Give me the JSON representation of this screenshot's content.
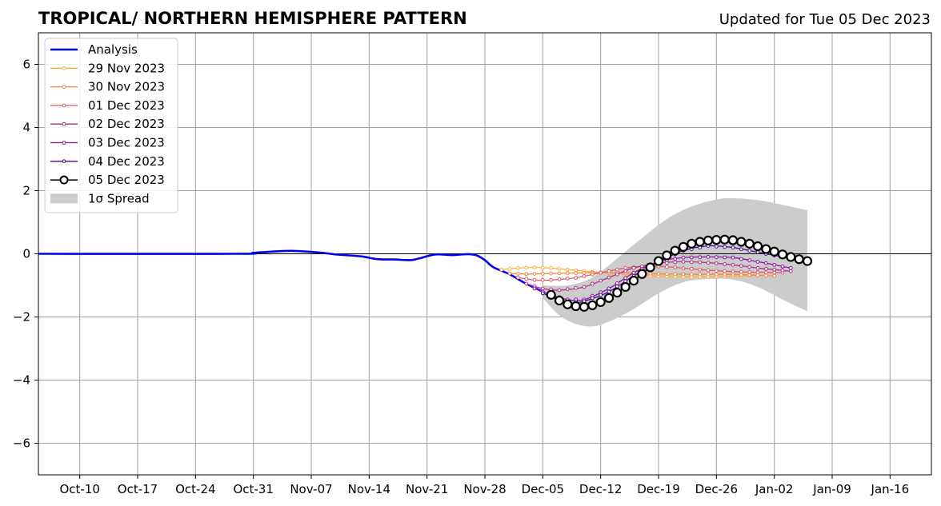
{
  "chart_data": {
    "type": "line",
    "title": "TROPICAL/ NORTHERN HEMISPHERE PATTERN",
    "subtitle": "Updated for Tue 05 Dec 2023",
    "xlabel": "",
    "ylabel": "",
    "xlim": [
      "2023-10-05",
      "2024-01-21"
    ],
    "ylim": [
      -7,
      7
    ],
    "x_ticks": [
      {
        "date": "2023-10-10",
        "label": "Oct-10"
      },
      {
        "date": "2023-10-17",
        "label": "Oct-17"
      },
      {
        "date": "2023-10-24",
        "label": "Oct-24"
      },
      {
        "date": "2023-10-31",
        "label": "Oct-31"
      },
      {
        "date": "2023-11-07",
        "label": "Nov-07"
      },
      {
        "date": "2023-11-14",
        "label": "Nov-14"
      },
      {
        "date": "2023-11-21",
        "label": "Nov-21"
      },
      {
        "date": "2023-11-28",
        "label": "Nov-28"
      },
      {
        "date": "2023-12-05",
        "label": "Dec-05"
      },
      {
        "date": "2023-12-12",
        "label": "Dec-12"
      },
      {
        "date": "2023-12-19",
        "label": "Dec-19"
      },
      {
        "date": "2023-12-26",
        "label": "Dec-26"
      },
      {
        "date": "2024-01-02",
        "label": "Jan-02"
      },
      {
        "date": "2024-01-09",
        "label": "Jan-09"
      },
      {
        "date": "2024-01-16",
        "label": "Jan-16"
      }
    ],
    "y_ticks": [
      {
        "value": 6,
        "label": "6"
      },
      {
        "value": 4,
        "label": "4"
      },
      {
        "value": 2,
        "label": "2"
      },
      {
        "value": 0,
        "label": "0"
      },
      {
        "value": -2,
        "label": "−2"
      },
      {
        "value": -4,
        "label": "−4"
      },
      {
        "value": -6,
        "label": "−6"
      }
    ],
    "grid": true,
    "legend_position": "top-left",
    "legend": [
      {
        "key": "analysis",
        "label": "Analysis",
        "style": "line",
        "color": "#0000ee"
      },
      {
        "key": "f1129",
        "label": "29 Nov 2023",
        "style": "dotline",
        "color": "#fbb33b"
      },
      {
        "key": "f1130",
        "label": "30 Nov 2023",
        "style": "dotline",
        "color": "#f0883f"
      },
      {
        "key": "f1201",
        "label": "01 Dec 2023",
        "style": "dotline",
        "color": "#dd5a6c"
      },
      {
        "key": "f1202",
        "label": "02 Dec 2023",
        "style": "dotline",
        "color": "#b2308c"
      },
      {
        "key": "f1203",
        "label": "03 Dec 2023",
        "style": "dotline",
        "color": "#8b12a4"
      },
      {
        "key": "f1204",
        "label": "04 Dec 2023",
        "style": "dotline",
        "color": "#4a0a8e"
      },
      {
        "key": "f1205",
        "label": "05 Dec 2023",
        "style": "bigmarker",
        "color": "#000000"
      },
      {
        "key": "spread",
        "label": "1σ Spread",
        "style": "patch",
        "color": "#cccccc"
      }
    ],
    "series": [
      {
        "key": "analysis",
        "color": "#0000ee",
        "points": [
          [
            "2023-10-05",
            0.0
          ],
          [
            "2023-10-29",
            0.0
          ],
          [
            "2023-10-31",
            0.03
          ],
          [
            "2023-11-03",
            0.08
          ],
          [
            "2023-11-05",
            0.09
          ],
          [
            "2023-11-08",
            0.04
          ],
          [
            "2023-11-10",
            -0.02
          ],
          [
            "2023-11-13",
            -0.08
          ],
          [
            "2023-11-15",
            -0.17
          ],
          [
            "2023-11-17",
            -0.18
          ],
          [
            "2023-11-19",
            -0.2
          ],
          [
            "2023-11-20",
            -0.15
          ],
          [
            "2023-11-22",
            -0.02
          ],
          [
            "2023-11-24",
            -0.04
          ],
          [
            "2023-11-26",
            -0.01
          ],
          [
            "2023-11-27",
            -0.05
          ],
          [
            "2023-11-28",
            -0.2
          ],
          [
            "2023-11-29",
            -0.42
          ],
          [
            "2023-12-01",
            -0.65
          ],
          [
            "2023-12-03",
            -0.95
          ],
          [
            "2023-12-05",
            -1.2
          ]
        ]
      },
      {
        "key": "f1129",
        "color": "#fbb33b",
        "points": [
          [
            "2023-11-30",
            -0.5
          ],
          [
            "2023-12-02",
            -0.45
          ],
          [
            "2023-12-04",
            -0.43
          ],
          [
            "2023-12-06",
            -0.45
          ],
          [
            "2023-12-08",
            -0.5
          ],
          [
            "2023-12-11",
            -0.57
          ],
          [
            "2023-12-14",
            -0.63
          ],
          [
            "2023-12-17",
            -0.68
          ],
          [
            "2023-12-20",
            -0.72
          ],
          [
            "2023-12-23",
            -0.73
          ],
          [
            "2023-12-26",
            -0.72
          ],
          [
            "2023-12-29",
            -0.7
          ],
          [
            "2024-01-01",
            -0.68
          ]
        ]
      },
      {
        "key": "f1130",
        "color": "#f0883f",
        "points": [
          [
            "2023-12-01",
            -0.62
          ],
          [
            "2023-12-03",
            -0.64
          ],
          [
            "2023-12-05",
            -0.63
          ],
          [
            "2023-12-08",
            -0.61
          ],
          [
            "2023-12-11",
            -0.6
          ],
          [
            "2023-12-14",
            -0.6
          ],
          [
            "2023-12-17",
            -0.62
          ],
          [
            "2023-12-20",
            -0.64
          ],
          [
            "2023-12-23",
            -0.65
          ],
          [
            "2023-12-26",
            -0.65
          ],
          [
            "2023-12-29",
            -0.66
          ],
          [
            "2024-01-02",
            -0.7
          ]
        ]
      },
      {
        "key": "f1201",
        "color": "#dd5a6c",
        "points": [
          [
            "2023-12-02",
            -0.75
          ],
          [
            "2023-12-04",
            -0.83
          ],
          [
            "2023-12-06",
            -0.83
          ],
          [
            "2023-12-09",
            -0.76
          ],
          [
            "2023-12-12",
            -0.6
          ],
          [
            "2023-12-15",
            -0.45
          ],
          [
            "2023-12-18",
            -0.39
          ],
          [
            "2023-12-21",
            -0.43
          ],
          [
            "2023-12-24",
            -0.5
          ],
          [
            "2023-12-27",
            -0.55
          ],
          [
            "2023-12-30",
            -0.58
          ],
          [
            "2024-01-03",
            -0.6
          ]
        ]
      },
      {
        "key": "f1202",
        "color": "#b2308c",
        "points": [
          [
            "2023-12-03",
            -0.95
          ],
          [
            "2023-12-05",
            -1.1
          ],
          [
            "2023-12-07",
            -1.15
          ],
          [
            "2023-12-10",
            -1.05
          ],
          [
            "2023-12-13",
            -0.75
          ],
          [
            "2023-12-16",
            -0.45
          ],
          [
            "2023-12-19",
            -0.3
          ],
          [
            "2023-12-22",
            -0.25
          ],
          [
            "2023-12-25",
            -0.28
          ],
          [
            "2023-12-28",
            -0.35
          ],
          [
            "2023-12-31",
            -0.45
          ],
          [
            "2024-01-04",
            -0.55
          ]
        ]
      },
      {
        "key": "f1203",
        "color": "#8b12a4",
        "points": [
          [
            "2023-12-04",
            -1.1
          ],
          [
            "2023-12-06",
            -1.3
          ],
          [
            "2023-12-08",
            -1.45
          ],
          [
            "2023-12-10",
            -1.45
          ],
          [
            "2023-12-13",
            -1.1
          ],
          [
            "2023-12-16",
            -0.6
          ],
          [
            "2023-12-19",
            -0.25
          ],
          [
            "2023-12-22",
            -0.12
          ],
          [
            "2023-12-25",
            -0.1
          ],
          [
            "2023-12-28",
            -0.12
          ],
          [
            "2023-12-31",
            -0.25
          ],
          [
            "2024-01-04",
            -0.45
          ]
        ]
      },
      {
        "key": "f1204",
        "color": "#4a0a8e",
        "points": [
          [
            "2023-12-05",
            -1.25
          ],
          [
            "2023-12-08",
            -1.55
          ],
          [
            "2023-12-10",
            -1.5
          ],
          [
            "2023-12-13",
            -1.2
          ],
          [
            "2023-12-16",
            -0.7
          ],
          [
            "2023-12-19",
            -0.25
          ],
          [
            "2023-12-22",
            0.1
          ],
          [
            "2023-12-25",
            0.25
          ],
          [
            "2023-12-28",
            0.2
          ],
          [
            "2023-12-31",
            0.05
          ],
          [
            "2024-01-03",
            -0.1
          ],
          [
            "2024-01-06",
            -0.28
          ]
        ]
      },
      {
        "key": "f1205",
        "color": "#000000",
        "points": [
          [
            "2023-12-06",
            -1.3
          ],
          [
            "2023-12-07",
            -1.48
          ],
          [
            "2023-12-08",
            -1.6
          ],
          [
            "2023-12-09",
            -1.66
          ],
          [
            "2023-12-10",
            -1.68
          ],
          [
            "2023-12-11",
            -1.63
          ],
          [
            "2023-12-12",
            -1.53
          ],
          [
            "2023-12-13",
            -1.4
          ],
          [
            "2023-12-14",
            -1.23
          ],
          [
            "2023-12-15",
            -1.05
          ],
          [
            "2023-12-16",
            -0.85
          ],
          [
            "2023-12-17",
            -0.64
          ],
          [
            "2023-12-18",
            -0.43
          ],
          [
            "2023-12-19",
            -0.23
          ],
          [
            "2023-12-20",
            -0.05
          ],
          [
            "2023-12-21",
            0.1
          ],
          [
            "2023-12-22",
            0.22
          ],
          [
            "2023-12-23",
            0.32
          ],
          [
            "2023-12-24",
            0.38
          ],
          [
            "2023-12-25",
            0.42
          ],
          [
            "2023-12-26",
            0.44
          ],
          [
            "2023-12-27",
            0.45
          ],
          [
            "2023-12-28",
            0.43
          ],
          [
            "2023-12-29",
            0.38
          ],
          [
            "2023-12-30",
            0.32
          ],
          [
            "2023-12-31",
            0.24
          ],
          [
            "2024-01-01",
            0.15
          ],
          [
            "2024-01-02",
            0.07
          ],
          [
            "2024-01-03",
            -0.02
          ],
          [
            "2024-01-04",
            -0.1
          ],
          [
            "2024-01-05",
            -0.17
          ],
          [
            "2024-01-06",
            -0.23
          ]
        ]
      }
    ],
    "spread": {
      "color": "#cccccc",
      "upper": [
        [
          "2023-12-05",
          -1.0
        ],
        [
          "2023-12-08",
          -1.0
        ],
        [
          "2023-12-11",
          -0.75
        ],
        [
          "2023-12-14",
          -0.15
        ],
        [
          "2023-12-17",
          0.5
        ],
        [
          "2023-12-20",
          1.1
        ],
        [
          "2023-12-23",
          1.5
        ],
        [
          "2023-12-26",
          1.72
        ],
        [
          "2023-12-28",
          1.76
        ],
        [
          "2023-12-31",
          1.7
        ],
        [
          "2024-01-03",
          1.55
        ],
        [
          "2024-01-06",
          1.38
        ]
      ],
      "lower": [
        [
          "2023-12-05",
          -1.4
        ],
        [
          "2023-12-07",
          -1.95
        ],
        [
          "2023-12-09",
          -2.22
        ],
        [
          "2023-12-11",
          -2.3
        ],
        [
          "2023-12-13",
          -2.15
        ],
        [
          "2023-12-16",
          -1.75
        ],
        [
          "2023-12-19",
          -1.25
        ],
        [
          "2023-12-22",
          -0.9
        ],
        [
          "2023-12-25",
          -0.8
        ],
        [
          "2023-12-28",
          -0.82
        ],
        [
          "2023-12-31",
          -1.05
        ],
        [
          "2024-01-03",
          -1.45
        ],
        [
          "2024-01-06",
          -1.82
        ]
      ]
    },
    "reference_line": {
      "y": 0,
      "color": "#000000"
    }
  }
}
